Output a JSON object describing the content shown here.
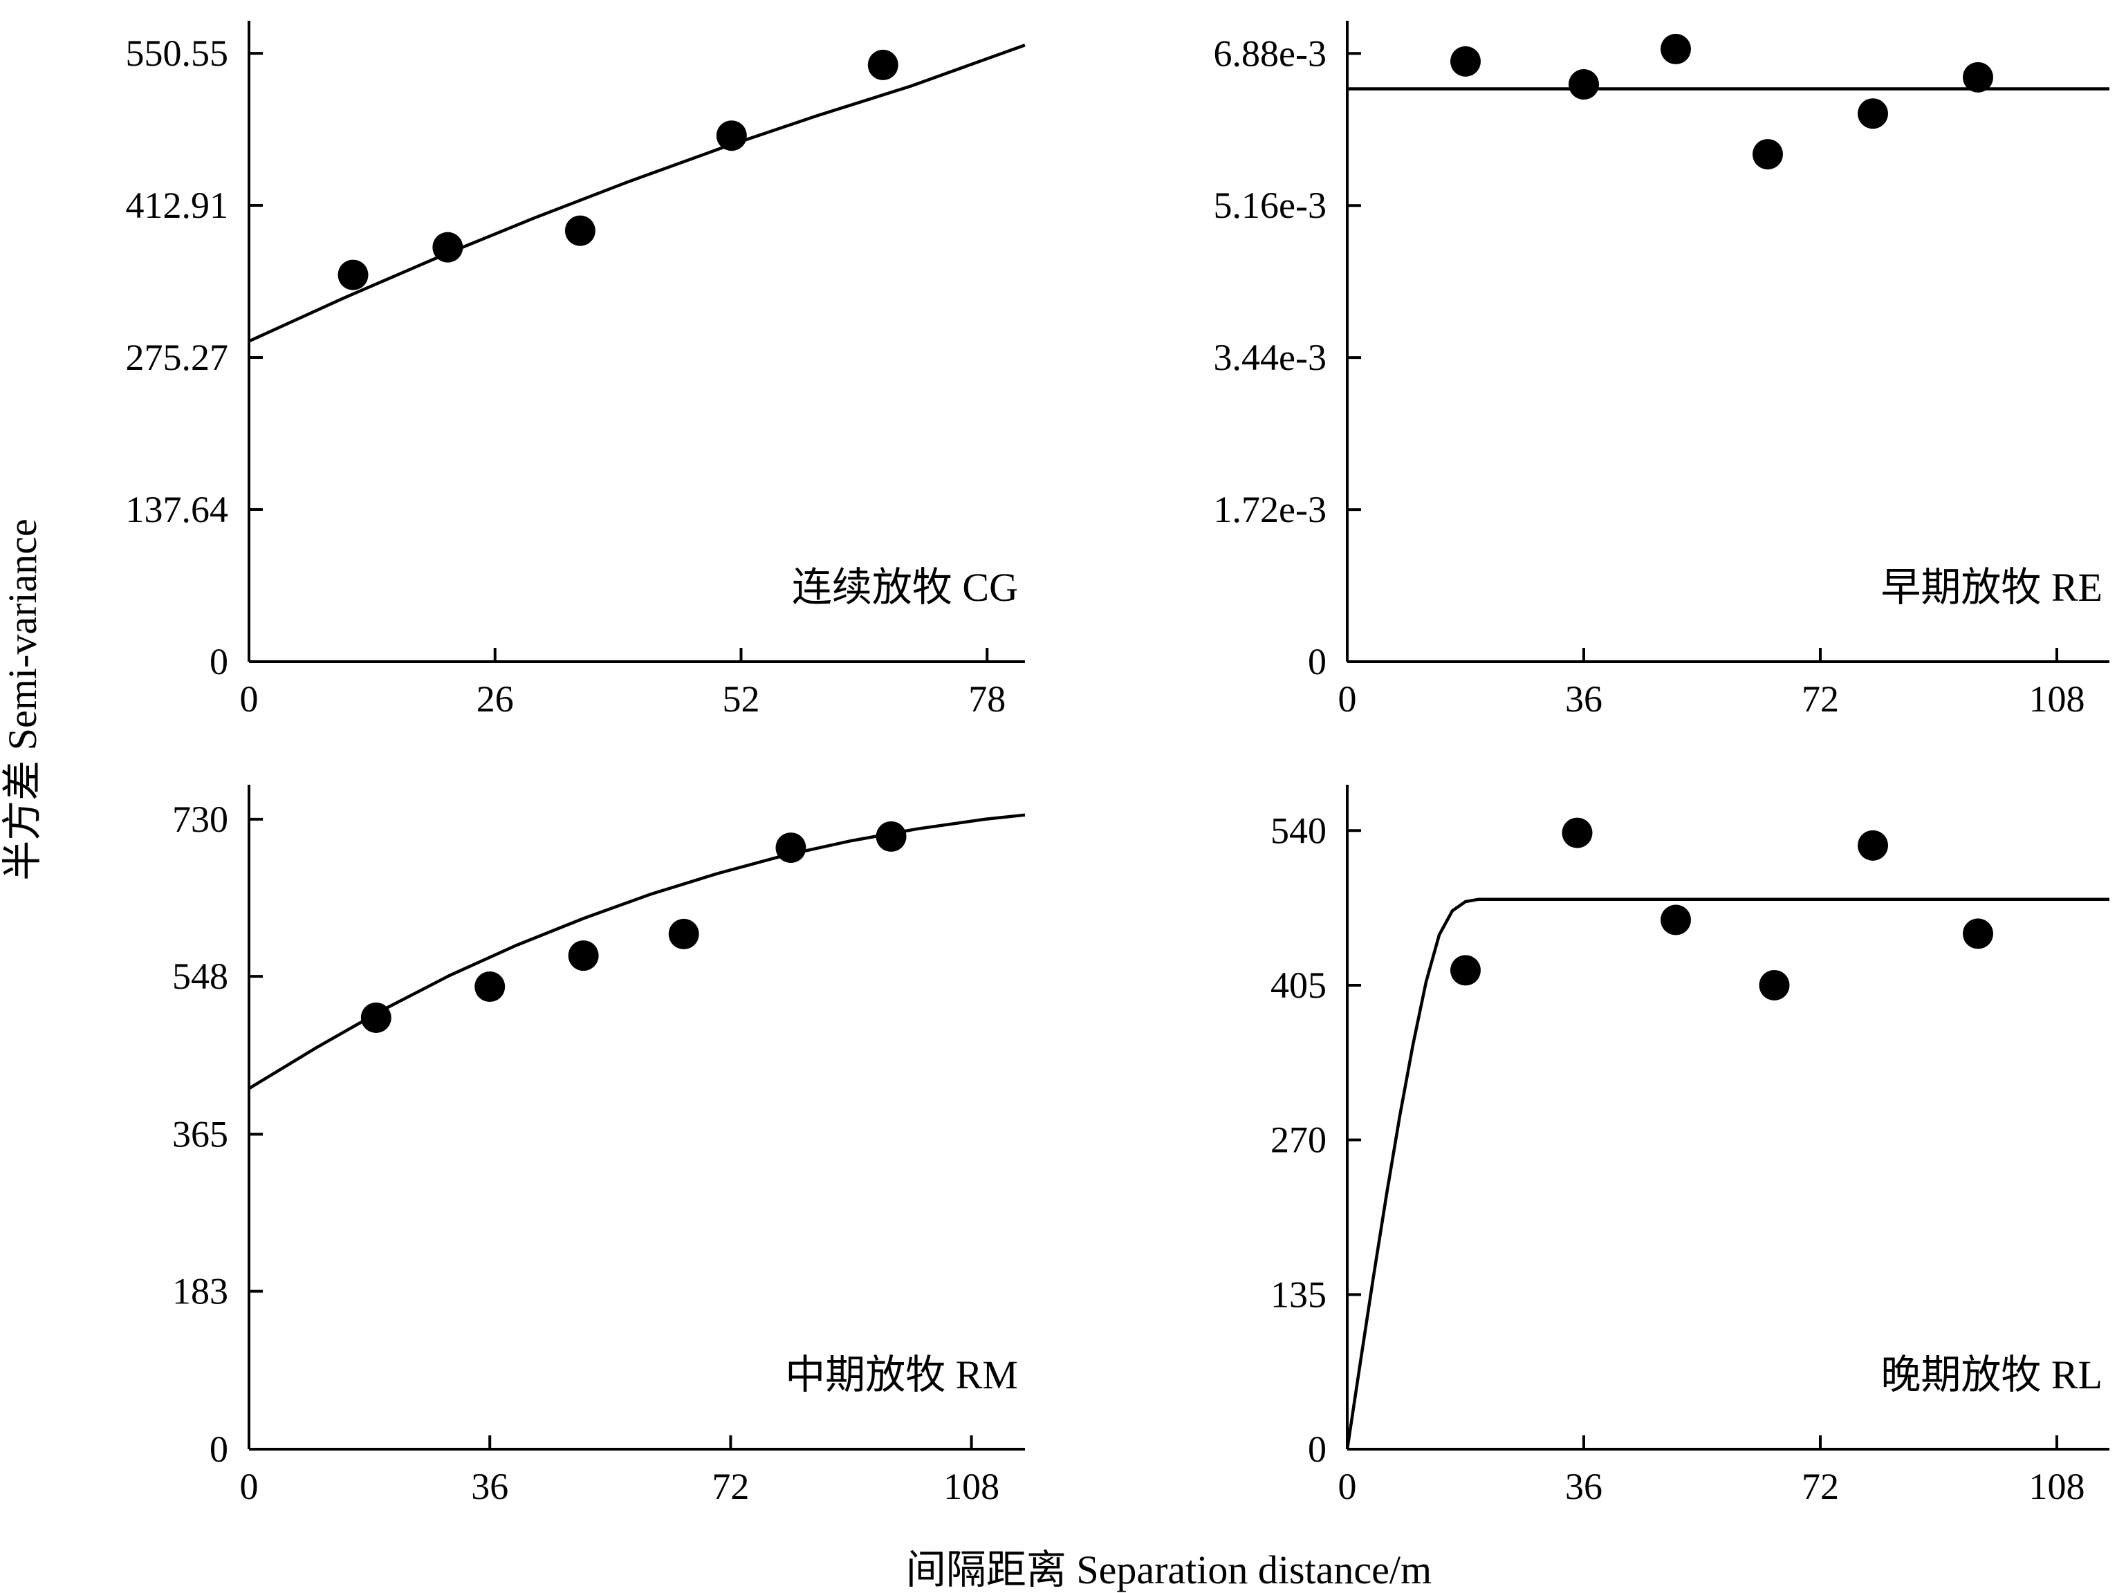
{
  "ylabel": "半方差 Semi-variance",
  "xlabel": "间隔距离 Separation distance/m",
  "chart_data": [
    {
      "type": "scatter",
      "label": "连续放牧 CG",
      "xlim": [
        0,
        82
      ],
      "ylim": [
        0,
        580
      ],
      "xticks": [
        0,
        26,
        52,
        78
      ],
      "yticks": [
        0,
        137.64,
        275.27,
        412.91,
        550.55
      ],
      "ytick_labels": [
        "0",
        "137.64",
        "275.27",
        "412.91",
        "550.55"
      ],
      "points": [
        {
          "x": 11,
          "y": 350
        },
        {
          "x": 21,
          "y": 375
        },
        {
          "x": 35,
          "y": 390
        },
        {
          "x": 51,
          "y": 476
        },
        {
          "x": 67,
          "y": 540
        }
      ],
      "model": {
        "x": [
          0,
          10,
          20,
          30,
          40,
          50,
          60,
          70,
          82
        ],
        "y": [
          290,
          329,
          366,
          401,
          434,
          465,
          494,
          521,
          558
        ]
      }
    },
    {
      "type": "scatter",
      "label": "早期放牧 RE",
      "xlim": [
        0,
        116
      ],
      "ylim": [
        0,
        0.00725
      ],
      "xticks": [
        0,
        36,
        72,
        108
      ],
      "yticks": [
        0,
        0.00172,
        0.00344,
        0.00516,
        0.00688
      ],
      "ytick_labels": [
        "0",
        "1.72e-3",
        "3.44e-3",
        "5.16e-3",
        "6.88e-3"
      ],
      "points": [
        {
          "x": 18,
          "y": 0.00679
        },
        {
          "x": 36,
          "y": 0.00653
        },
        {
          "x": 50,
          "y": 0.00693
        },
        {
          "x": 64,
          "y": 0.00574
        },
        {
          "x": 80,
          "y": 0.0062
        },
        {
          "x": 96,
          "y": 0.00661
        }
      ],
      "model": {
        "x": [
          0,
          116
        ],
        "y": [
          0.00648,
          0.00648
        ]
      }
    },
    {
      "type": "scatter",
      "label": "中期放牧 RM",
      "xlim": [
        0,
        116
      ],
      "ylim": [
        0,
        770
      ],
      "xticks": [
        0,
        36,
        72,
        108
      ],
      "yticks": [
        0,
        183,
        365,
        548,
        730
      ],
      "ytick_labels": [
        "0",
        "183",
        "365",
        "548",
        "730"
      ],
      "points": [
        {
          "x": 19,
          "y": 500
        },
        {
          "x": 36,
          "y": 536
        },
        {
          "x": 50,
          "y": 572
        },
        {
          "x": 65,
          "y": 597
        },
        {
          "x": 81,
          "y": 697
        },
        {
          "x": 96,
          "y": 710
        }
      ],
      "model": {
        "x": [
          0,
          10,
          20,
          30,
          40,
          50,
          60,
          70,
          80,
          90,
          100,
          110,
          116
        ],
        "y": [
          418,
          465,
          509,
          549,
          584,
          615,
          643,
          667,
          688,
          705,
          719,
          730,
          735
        ]
      }
    },
    {
      "type": "scatter",
      "label": "晚期放牧 RL",
      "xlim": [
        0,
        116
      ],
      "ylim": [
        0,
        580
      ],
      "xticks": [
        0,
        36,
        72,
        108
      ],
      "yticks": [
        0,
        135,
        270,
        405,
        540
      ],
      "ytick_labels": [
        "0",
        "135",
        "270",
        "405",
        "540"
      ],
      "points": [
        {
          "x": 18,
          "y": 418
        },
        {
          "x": 35,
          "y": 538
        },
        {
          "x": 50,
          "y": 462
        },
        {
          "x": 65,
          "y": 405
        },
        {
          "x": 80,
          "y": 527
        },
        {
          "x": 96,
          "y": 450
        }
      ],
      "model": {
        "x": [
          0,
          2,
          4,
          6,
          8,
          10,
          12,
          14,
          16,
          18,
          20,
          22,
          23,
          24,
          25,
          116
        ],
        "y": [
          0,
          76,
          151,
          223,
          291,
          353,
          408,
          449,
          470,
          478,
          480,
          480,
          480,
          480,
          480,
          480
        ]
      }
    }
  ]
}
